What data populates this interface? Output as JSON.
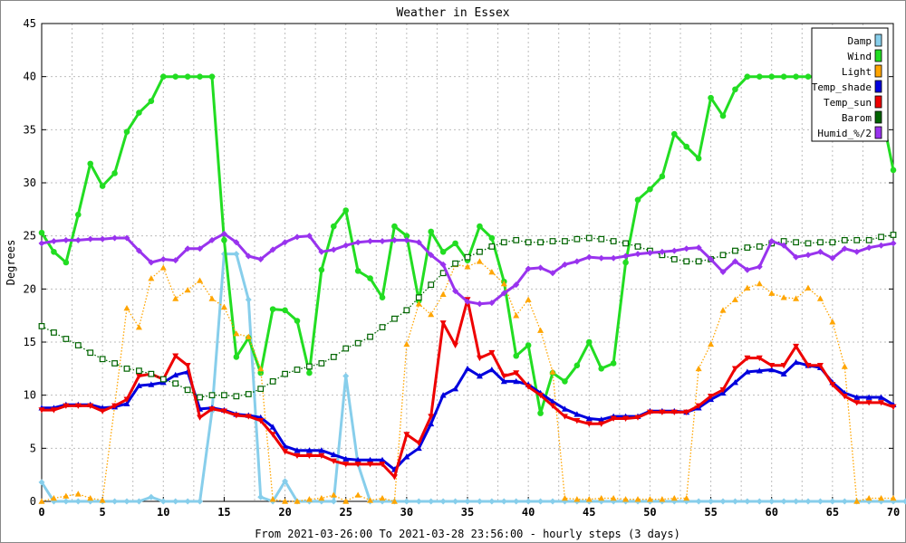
{
  "chart_data": {
    "type": "line",
    "title": "Weather in Essex",
    "xlabel": "From 2021-03-26:00 To 2021-03-28 23:56:00 - hourly steps (3 days)",
    "ylabel": "Degrees",
    "xlim": [
      0,
      70
    ],
    "ylim": [
      0,
      45
    ],
    "xticks": [
      0,
      5,
      10,
      15,
      20,
      25,
      30,
      35,
      40,
      45,
      50,
      55,
      60,
      65,
      70
    ],
    "yticks": [
      0,
      5,
      10,
      15,
      20,
      25,
      30,
      35,
      40,
      45
    ],
    "grid": true,
    "legend_position": "top-right",
    "series": [
      {
        "name": "Damp",
        "color": "#87ceeb",
        "marker": "diamond",
        "style": "solid",
        "values": [
          1.8,
          0,
          0,
          0,
          0,
          0,
          0,
          0,
          0,
          0.4,
          0,
          0,
          0,
          0,
          8.5,
          23.3,
          23.3,
          19,
          0.4,
          0,
          1.9,
          0,
          0,
          0,
          0,
          11.8,
          3.5,
          0,
          0,
          0,
          0,
          0,
          0,
          0,
          0,
          0,
          0,
          0,
          0,
          0,
          0,
          0,
          0,
          0,
          0,
          0,
          0,
          0,
          0,
          0,
          0,
          0,
          0,
          0,
          0,
          0,
          0,
          0,
          0,
          0,
          0,
          0,
          0,
          0,
          0,
          0,
          0,
          0,
          0,
          0,
          0,
          0
        ]
      },
      {
        "name": "Wind",
        "color": "#22dd22",
        "marker": "circle",
        "style": "solid",
        "values": [
          25.3,
          23.5,
          22.5,
          27,
          31.8,
          29.7,
          30.9,
          34.8,
          36.6,
          37.7,
          40,
          40,
          40,
          40,
          40,
          24.6,
          13.6,
          15.4,
          12.1,
          18.1,
          18,
          17,
          12.1,
          21.8,
          25.9,
          27.4,
          21.7,
          21,
          19.2,
          25.9,
          25,
          18.9,
          25.4,
          23.5,
          24.3,
          22.7,
          25.9,
          24.8,
          20.7,
          13.7,
          14.7,
          8.3,
          12.1,
          11.3,
          12.8,
          15,
          12.5,
          13,
          22.5,
          28.4,
          29.4,
          30.6,
          34.6,
          33.4,
          32.3,
          38,
          36.3,
          38.8,
          40,
          40,
          40,
          40,
          40,
          40,
          40,
          40,
          40,
          40,
          40,
          36.8,
          31.2
        ]
      },
      {
        "name": "Light",
        "color": "#ffa500",
        "marker": "triangle",
        "style": "dotted",
        "values": [
          0,
          0.3,
          0.5,
          0.7,
          0.3,
          0.1,
          9,
          18.2,
          16.4,
          21,
          22,
          19.1,
          19.9,
          20.8,
          19.1,
          18.3,
          15.8,
          15.5,
          12.5,
          0.2,
          0,
          0,
          0.2,
          0.3,
          0.6,
          0,
          0.6,
          0.1,
          0.3,
          0,
          14.8,
          18.6,
          17.6,
          19.5,
          22.3,
          22.1,
          22.6,
          21.6,
          20.5,
          17.5,
          19,
          16.1,
          12.2,
          0.3,
          0.2,
          0.2,
          0.3,
          0.3,
          0.2,
          0.2,
          0.2,
          0.2,
          0.3,
          0.3,
          12.5,
          14.8,
          18,
          19,
          20.1,
          20.5,
          19.6,
          19.2,
          19.1,
          20.1,
          19.1,
          16.9,
          12.7,
          0,
          0.3,
          0.3,
          0.3
        ]
      },
      {
        "name": "Temp_shade",
        "color": "#0000dd",
        "marker": "triangle",
        "style": "solid",
        "values": [
          8.8,
          8.8,
          9.1,
          9.1,
          9.1,
          8.8,
          8.9,
          9.2,
          10.9,
          11,
          11.2,
          11.9,
          12.2,
          8.7,
          8.8,
          8.6,
          8.2,
          8.1,
          7.9,
          7,
          5.2,
          4.8,
          4.8,
          4.8,
          4.4,
          4,
          3.9,
          3.9,
          3.9,
          3,
          4.2,
          5,
          7.3,
          10,
          10.6,
          12.5,
          11.8,
          12.4,
          11.3,
          11.3,
          11,
          10.2,
          9.4,
          8.7,
          8.2,
          7.8,
          7.7,
          8,
          8,
          8,
          8.5,
          8.5,
          8.5,
          8.4,
          8.8,
          9.6,
          10.2,
          11.2,
          12.2,
          12.3,
          12.4,
          12,
          13.1,
          12.8,
          12.6,
          11.2,
          10.2,
          9.8,
          9.8,
          9.8,
          9.1
        ]
      },
      {
        "name": "Temp_sun",
        "color": "#ee0000",
        "marker": "triangle-down",
        "style": "solid",
        "values": [
          8.6,
          8.6,
          9,
          9,
          9,
          8.5,
          9,
          9.6,
          11.8,
          12,
          11.5,
          13.7,
          12.8,
          7.9,
          8.7,
          8.5,
          8.1,
          8,
          7.6,
          6.3,
          4.7,
          4.3,
          4.3,
          4.3,
          3.8,
          3.5,
          3.5,
          3.5,
          3.5,
          2.3,
          6.3,
          5.5,
          8,
          16.8,
          14.7,
          19,
          13.5,
          14,
          11.8,
          12.1,
          10.8,
          10,
          9,
          8,
          7.6,
          7.3,
          7.3,
          7.8,
          7.8,
          7.9,
          8.4,
          8.4,
          8.4,
          8.4,
          9,
          9.9,
          10.5,
          12.5,
          13.5,
          13.5,
          12.8,
          12.8,
          14.6,
          12.8,
          12.8,
          11,
          9.9,
          9.3,
          9.3,
          9.3,
          8.9
        ]
      },
      {
        "name": "Barom",
        "color": "#006400",
        "marker": "square",
        "style": "dotted",
        "values": [
          16.5,
          15.9,
          15.3,
          14.7,
          14,
          13.4,
          13,
          12.5,
          12.3,
          12,
          11.5,
          11.1,
          10.5,
          9.8,
          10,
          10,
          9.9,
          10.1,
          10.6,
          11.3,
          12,
          12.4,
          12.7,
          13,
          13.6,
          14.4,
          14.9,
          15.5,
          16.4,
          17.2,
          18,
          19.2,
          20.4,
          21.5,
          22.4,
          23,
          23.5,
          24,
          24.4,
          24.6,
          24.4,
          24.4,
          24.5,
          24.5,
          24.7,
          24.8,
          24.7,
          24.5,
          24.3,
          24,
          23.6,
          23.2,
          22.8,
          22.6,
          22.6,
          22.8,
          23.2,
          23.6,
          23.9,
          24,
          24.3,
          24.5,
          24.4,
          24.3,
          24.4,
          24.4,
          24.6,
          24.6,
          24.6,
          24.9,
          25.1
        ]
      },
      {
        "name": "Humid_%/2",
        "color": "#9933ee",
        "marker": "diamond",
        "style": "solid",
        "values": [
          24.3,
          24.5,
          24.6,
          24.6,
          24.7,
          24.7,
          24.8,
          24.8,
          23.6,
          22.5,
          22.8,
          22.7,
          23.8,
          23.8,
          24.6,
          25.2,
          24.4,
          23.1,
          22.8,
          23.7,
          24.4,
          24.9,
          25,
          23.5,
          23.7,
          24.1,
          24.4,
          24.5,
          24.5,
          24.6,
          24.6,
          24.4,
          23.2,
          22.3,
          19.8,
          18.8,
          18.6,
          18.7,
          19.6,
          20.4,
          21.9,
          22,
          21.5,
          22.3,
          22.6,
          23,
          22.9,
          22.9,
          23.1,
          23.3,
          23.4,
          23.5,
          23.6,
          23.8,
          23.9,
          22.8,
          21.6,
          22.6,
          21.8,
          22.1,
          24.5,
          24.1,
          23,
          23.2,
          23.5,
          22.9,
          23.8,
          23.5,
          23.9,
          24.1,
          24.3
        ]
      }
    ]
  }
}
